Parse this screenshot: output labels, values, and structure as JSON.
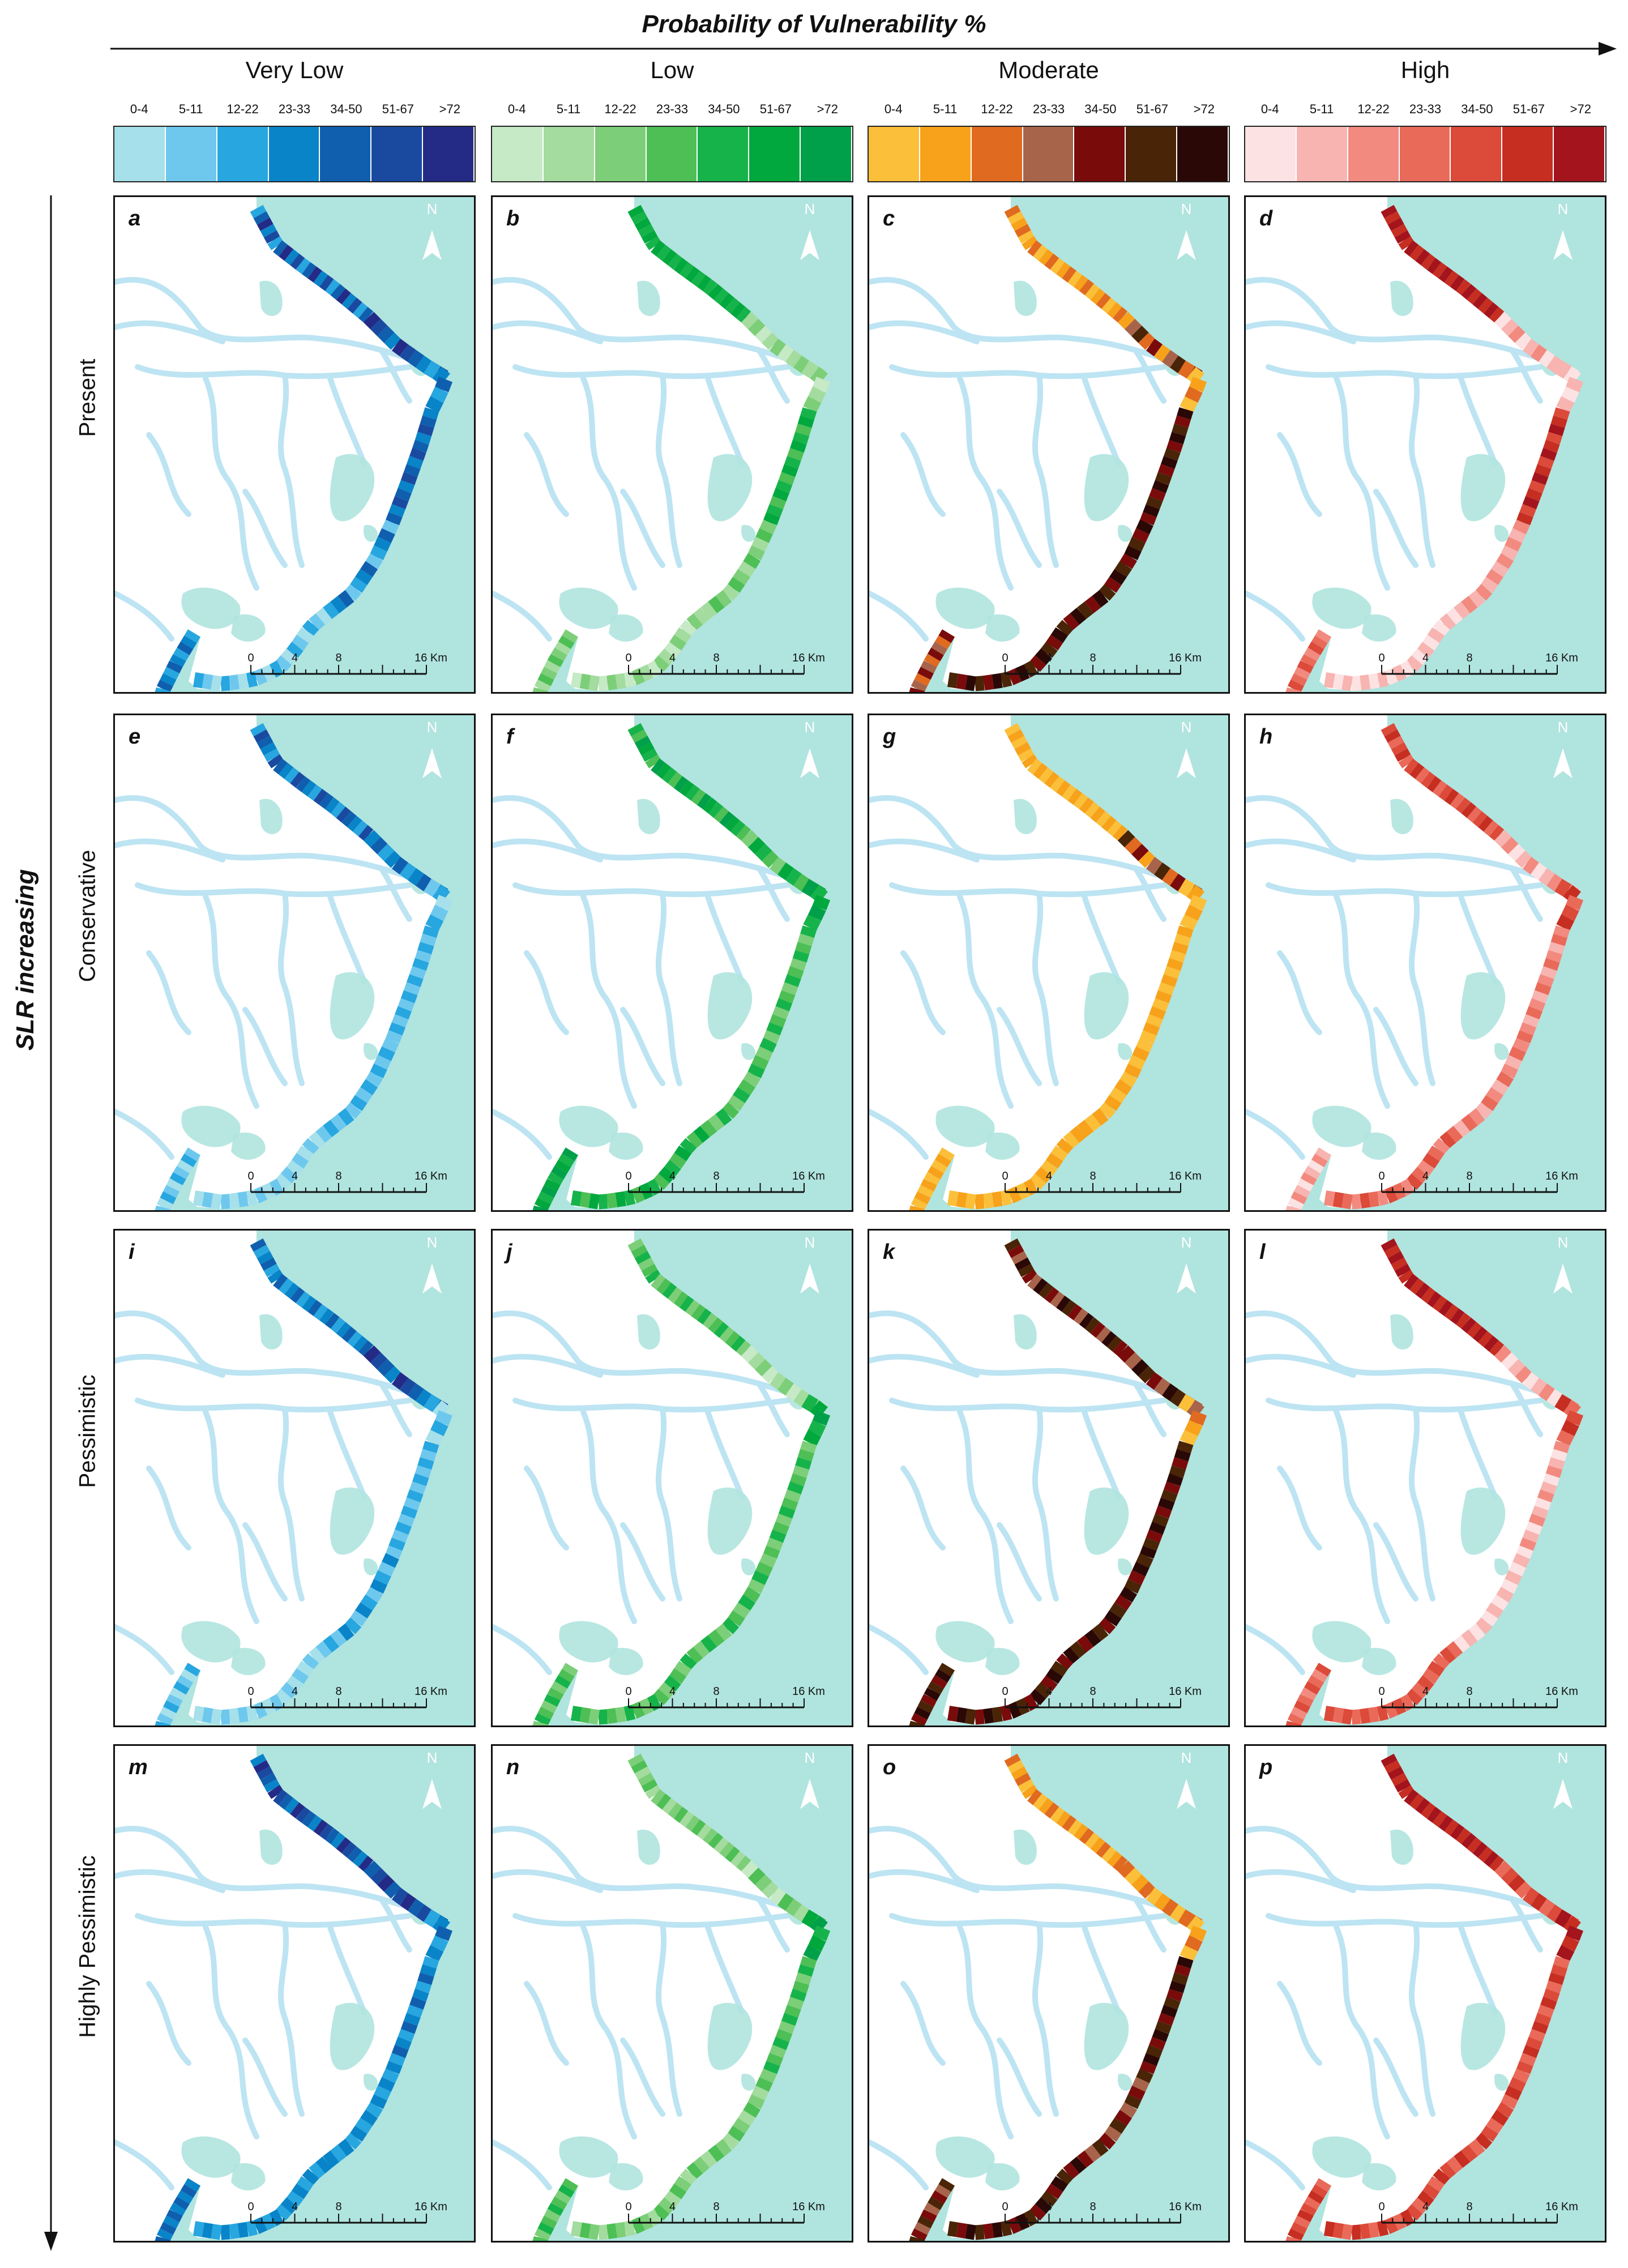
{
  "header": {
    "title": "Probability of Vulnerability %",
    "side_label": "SLR increasing"
  },
  "categories": [
    {
      "name": "Very Low",
      "colors": [
        "#a6e0ea",
        "#6ec8ee",
        "#27a6e0",
        "#0984c8",
        "#0f5fae",
        "#1a4aa0",
        "#232b87"
      ]
    },
    {
      "name": "Low",
      "colors": [
        "#c6e9c6",
        "#a3dc9e",
        "#7dce78",
        "#4dbf55",
        "#16b34a",
        "#00a83d",
        "#00a04a"
      ]
    },
    {
      "name": "Moderate",
      "colors": [
        "#fbbf3a",
        "#f7a21a",
        "#e06a1f",
        "#a8644a",
        "#7a0b0b",
        "#4a2407",
        "#2a0806"
      ]
    },
    {
      "name": "High",
      "colors": [
        "#fde2e3",
        "#f8b4b0",
        "#f28a80",
        "#ea6a5a",
        "#dc4a3a",
        "#c62e22",
        "#a4141c"
      ]
    }
  ],
  "ticks": [
    "0-4",
    "5-11",
    "12-22",
    "23-33",
    "34-50",
    "51-67",
    ">72"
  ],
  "rows": [
    "Present",
    "Conservative",
    "Pessimistic",
    "Highly Pessimistic"
  ],
  "panels": [
    {
      "letter": "a",
      "cat": 0,
      "seg": [
        [
          2,
          6
        ],
        [
          3,
          6
        ],
        [
          2,
          4
        ],
        [
          3,
          5
        ],
        [
          1,
          4
        ],
        [
          0,
          2
        ],
        [
          2,
          4
        ]
      ]
    },
    {
      "letter": "b",
      "cat": 1,
      "seg": [
        [
          4,
          5
        ],
        [
          0,
          2
        ],
        [
          0,
          2
        ],
        [
          3,
          5
        ],
        [
          1,
          3
        ],
        [
          0,
          2
        ],
        [
          1,
          3
        ]
      ]
    },
    {
      "letter": "c",
      "cat": 2,
      "seg": [
        [
          0,
          2
        ],
        [
          1,
          5
        ],
        [
          0,
          2
        ],
        [
          4,
          6
        ],
        [
          4,
          6
        ],
        [
          4,
          6
        ],
        [
          2,
          4
        ]
      ]
    },
    {
      "letter": "d",
      "cat": 3,
      "seg": [
        [
          5,
          6
        ],
        [
          0,
          2
        ],
        [
          0,
          1
        ],
        [
          4,
          6
        ],
        [
          1,
          2
        ],
        [
          0,
          1
        ],
        [
          2,
          4
        ]
      ]
    },
    {
      "letter": "e",
      "cat": 0,
      "seg": [
        [
          2,
          5
        ],
        [
          2,
          4
        ],
        [
          0,
          2
        ],
        [
          1,
          2
        ],
        [
          1,
          2
        ],
        [
          0,
          1
        ],
        [
          0,
          2
        ]
      ]
    },
    {
      "letter": "f",
      "cat": 1,
      "seg": [
        [
          3,
          6
        ],
        [
          2,
          5
        ],
        [
          4,
          6
        ],
        [
          2,
          4
        ],
        [
          2,
          4
        ],
        [
          3,
          5
        ],
        [
          4,
          6
        ]
      ]
    },
    {
      "letter": "g",
      "cat": 2,
      "seg": [
        [
          0,
          1
        ],
        [
          1,
          5
        ],
        [
          0,
          1
        ],
        [
          0,
          1
        ],
        [
          0,
          1
        ],
        [
          0,
          1
        ],
        [
          0,
          1
        ]
      ]
    },
    {
      "letter": "h",
      "cat": 3,
      "seg": [
        [
          3,
          5
        ],
        [
          0,
          2
        ],
        [
          3,
          5
        ],
        [
          1,
          3
        ],
        [
          1,
          3
        ],
        [
          2,
          4
        ],
        [
          0,
          2
        ]
      ]
    },
    {
      "letter": "i",
      "cat": 0,
      "seg": [
        [
          2,
          4
        ],
        [
          3,
          6
        ],
        [
          0,
          2
        ],
        [
          1,
          2
        ],
        [
          1,
          3
        ],
        [
          0,
          1
        ],
        [
          0,
          2
        ]
      ]
    },
    {
      "letter": "j",
      "cat": 1,
      "seg": [
        [
          2,
          4
        ],
        [
          0,
          2
        ],
        [
          4,
          6
        ],
        [
          2,
          4
        ],
        [
          2,
          4
        ],
        [
          2,
          4
        ],
        [
          2,
          4
        ]
      ]
    },
    {
      "letter": "k",
      "cat": 2,
      "seg": [
        [
          3,
          6
        ],
        [
          3,
          6
        ],
        [
          0,
          3
        ],
        [
          4,
          6
        ],
        [
          4,
          6
        ],
        [
          4,
          6
        ],
        [
          4,
          6
        ]
      ]
    },
    {
      "letter": "l",
      "cat": 3,
      "seg": [
        [
          5,
          6
        ],
        [
          0,
          2
        ],
        [
          3,
          5
        ],
        [
          0,
          2
        ],
        [
          0,
          1
        ],
        [
          3,
          4
        ],
        [
          2,
          4
        ]
      ]
    },
    {
      "letter": "m",
      "cat": 0,
      "seg": [
        [
          3,
          6
        ],
        [
          4,
          6
        ],
        [
          2,
          4
        ],
        [
          2,
          4
        ],
        [
          2,
          3
        ],
        [
          2,
          3
        ],
        [
          3,
          4
        ]
      ]
    },
    {
      "letter": "n",
      "cat": 1,
      "seg": [
        [
          1,
          3
        ],
        [
          0,
          3
        ],
        [
          4,
          6
        ],
        [
          2,
          4
        ],
        [
          1,
          3
        ],
        [
          1,
          3
        ],
        [
          2,
          4
        ]
      ]
    },
    {
      "letter": "o",
      "cat": 2,
      "seg": [
        [
          0,
          2
        ],
        [
          0,
          2
        ],
        [
          0,
          2
        ],
        [
          4,
          6
        ],
        [
          3,
          5
        ],
        [
          4,
          6
        ],
        [
          3,
          5
        ]
      ]
    },
    {
      "letter": "p",
      "cat": 3,
      "seg": [
        [
          5,
          6
        ],
        [
          3,
          5
        ],
        [
          5,
          6
        ],
        [
          3,
          5
        ],
        [
          3,
          5
        ],
        [
          3,
          5
        ],
        [
          3,
          5
        ]
      ]
    }
  ],
  "map": {
    "north_label": "N",
    "scale_ticks": [
      "0",
      "4",
      "8",
      "16 Km"
    ],
    "sea_color": "#b0e4df",
    "land_color": "#ffffff",
    "river_color": "#bde4f2"
  }
}
